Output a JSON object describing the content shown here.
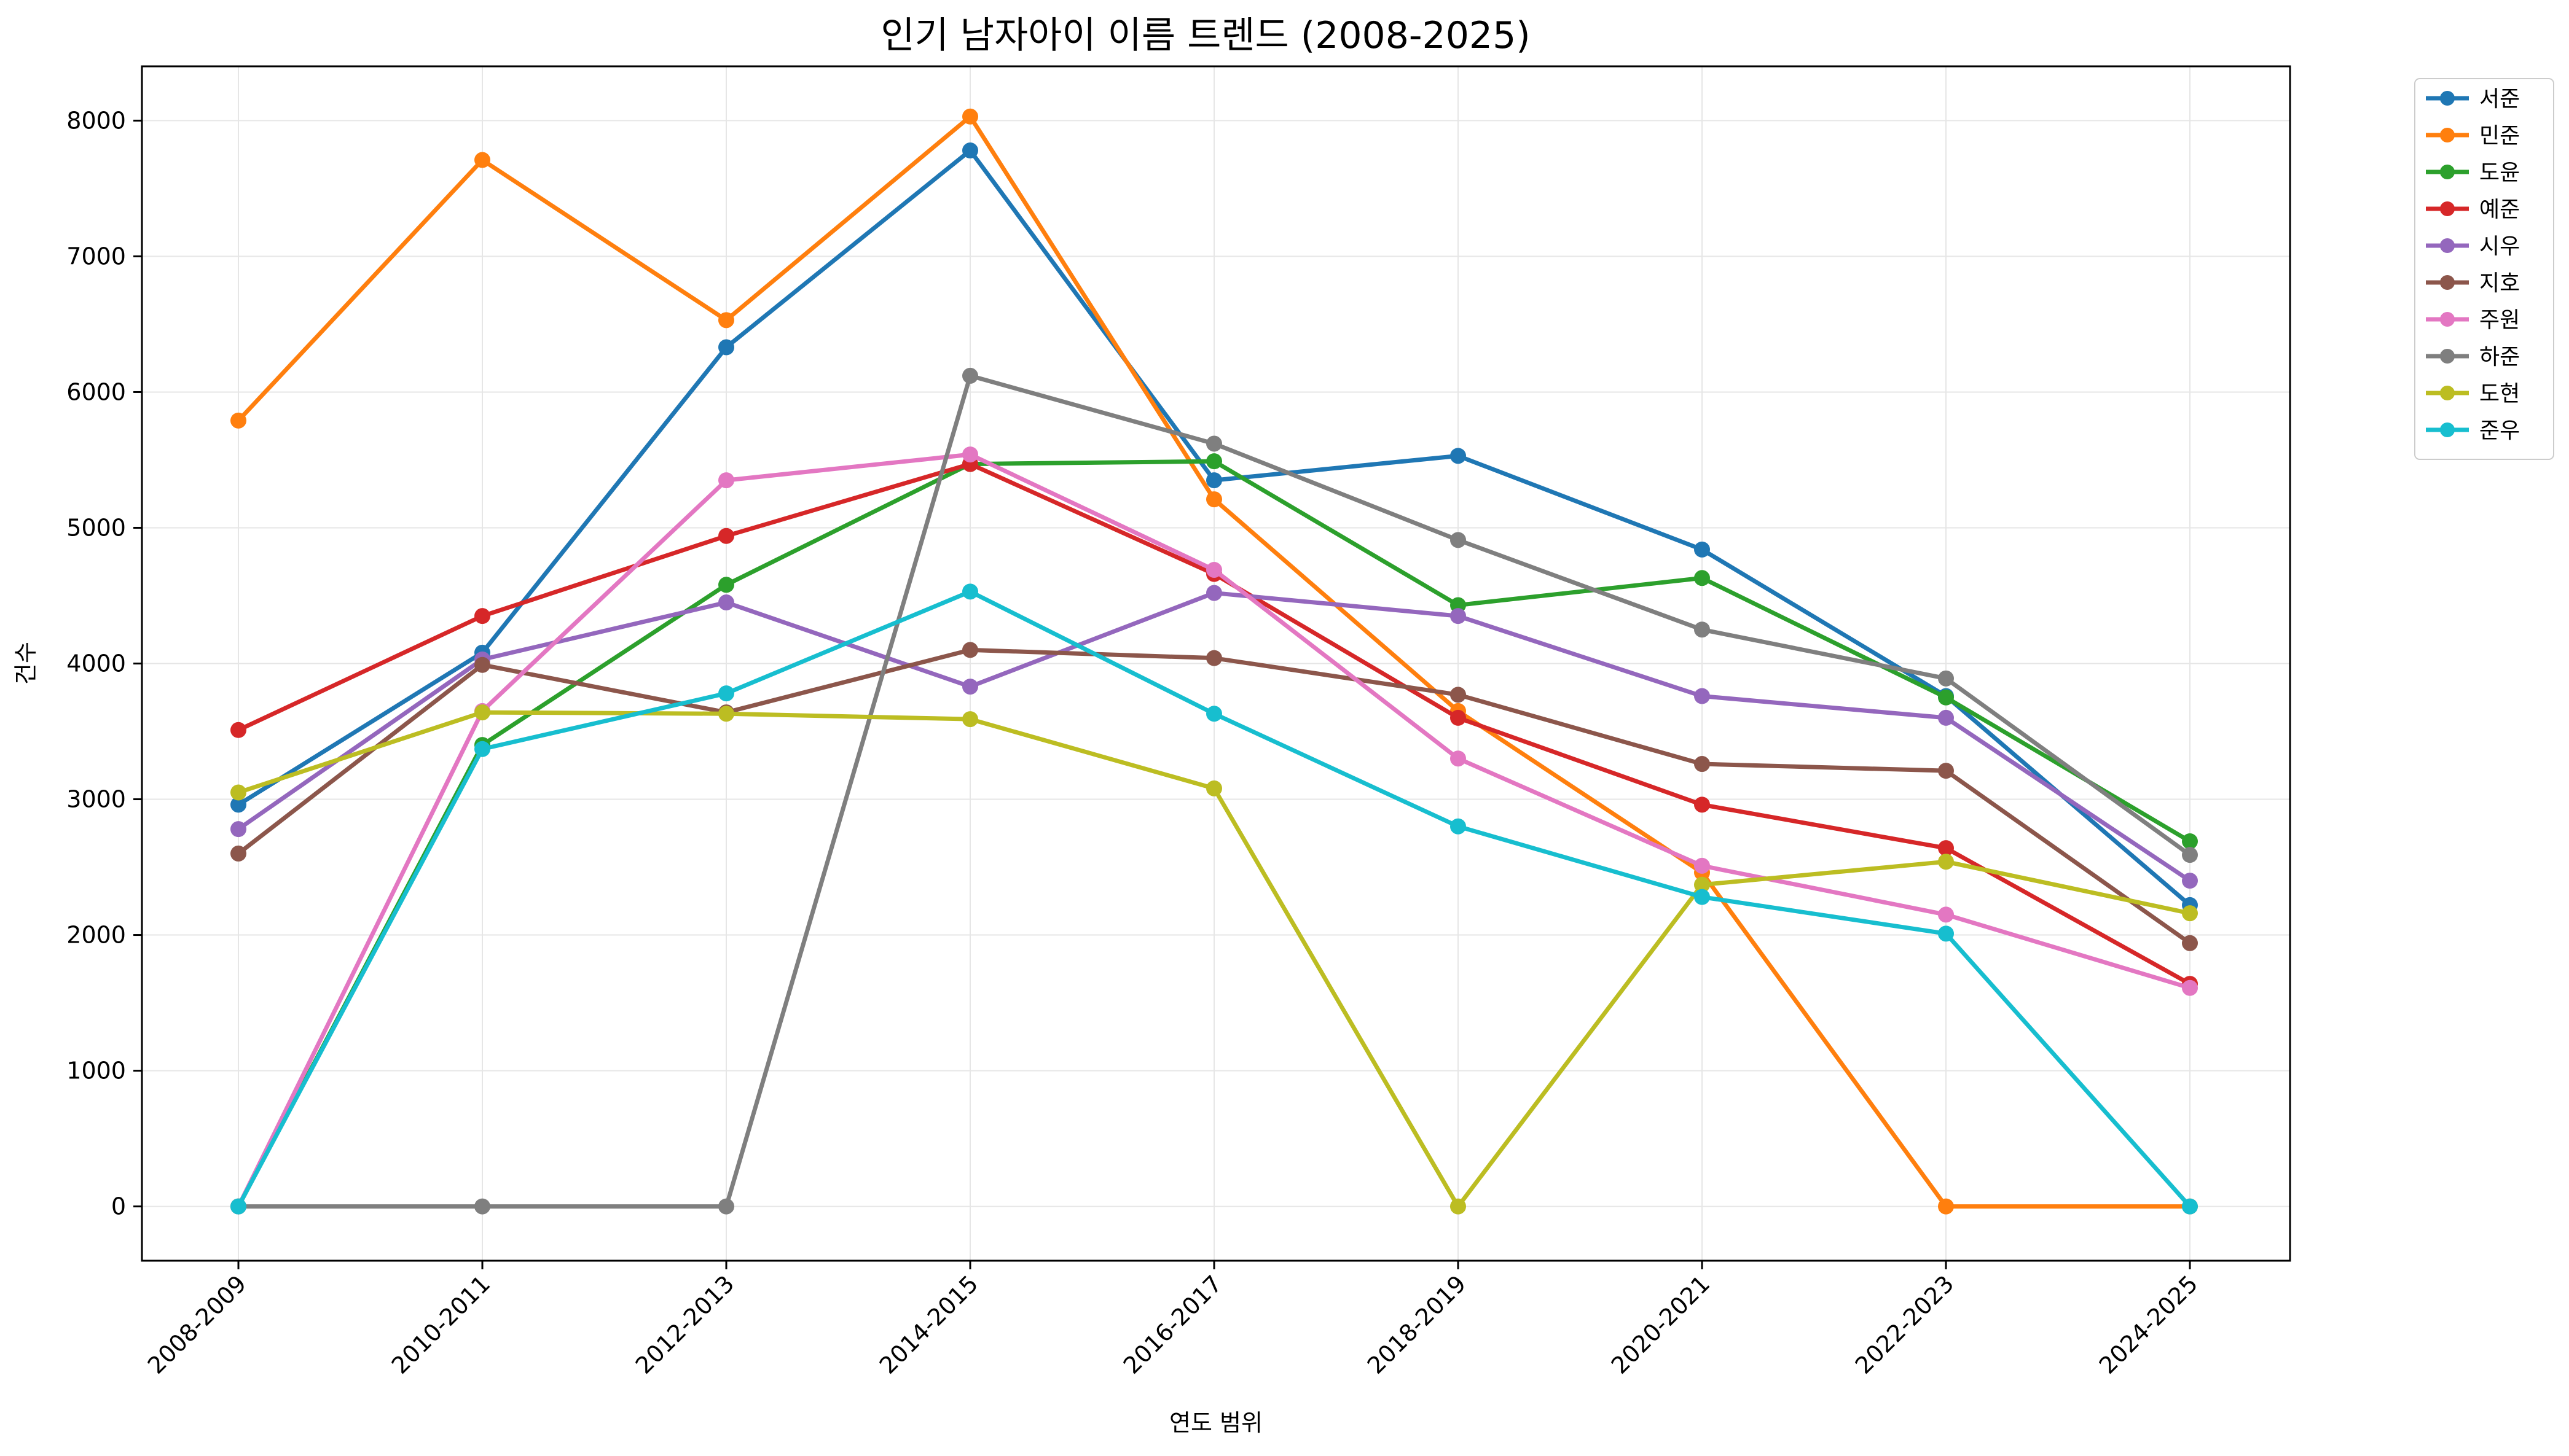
{
  "chart_data": {
    "type": "line",
    "title": "인기 남자아이 이름 트렌드 (2008-2025)",
    "xlabel": "연도 범위",
    "ylabel": "건수",
    "categories": [
      "2008-2009",
      "2010-2011",
      "2012-2013",
      "2014-2015",
      "2016-2017",
      "2018-2019",
      "2020-2021",
      "2022-2023",
      "2024-2025"
    ],
    "ylim": [
      -400,
      8400
    ],
    "yticks": [
      0,
      1000,
      2000,
      3000,
      4000,
      5000,
      6000,
      7000,
      8000
    ],
    "grid": true,
    "legend_position": "outside-top-right",
    "series": [
      {
        "name": "서준",
        "color": "#1f77b4",
        "values": [
          2960,
          4080,
          6330,
          7780,
          5350,
          5530,
          4840,
          3760,
          2220
        ]
      },
      {
        "name": "민준",
        "color": "#ff7f0e",
        "values": [
          5790,
          7710,
          6530,
          8030,
          5210,
          3650,
          2460,
          0,
          0
        ]
      },
      {
        "name": "도윤",
        "color": "#2ca02c",
        "values": [
          0,
          3400,
          4580,
          5470,
          5490,
          4430,
          4630,
          3750,
          2690
        ]
      },
      {
        "name": "예준",
        "color": "#d62728",
        "values": [
          3510,
          4350,
          4940,
          5470,
          4660,
          3600,
          2960,
          2640,
          1640
        ]
      },
      {
        "name": "시우",
        "color": "#9467bd",
        "values": [
          2780,
          4030,
          4450,
          3830,
          4520,
          4350,
          3760,
          3600,
          2400
        ]
      },
      {
        "name": "지호",
        "color": "#8c564b",
        "values": [
          2600,
          3990,
          3640,
          4100,
          4040,
          3770,
          3260,
          3210,
          1940
        ]
      },
      {
        "name": "주원",
        "color": "#e377c2",
        "values": [
          0,
          3650,
          5350,
          5540,
          4690,
          3300,
          2510,
          2150,
          1610
        ]
      },
      {
        "name": "하준",
        "color": "#7f7f7f",
        "values": [
          0,
          0,
          0,
          6120,
          5620,
          4910,
          4250,
          3890,
          2590
        ]
      },
      {
        "name": "도현",
        "color": "#bcbd22",
        "values": [
          3050,
          3640,
          3630,
          3590,
          3080,
          0,
          2370,
          2540,
          2160
        ]
      },
      {
        "name": "준우",
        "color": "#17becf",
        "values": [
          0,
          3370,
          3780,
          4530,
          3630,
          2800,
          2280,
          2010,
          0
        ]
      }
    ]
  }
}
